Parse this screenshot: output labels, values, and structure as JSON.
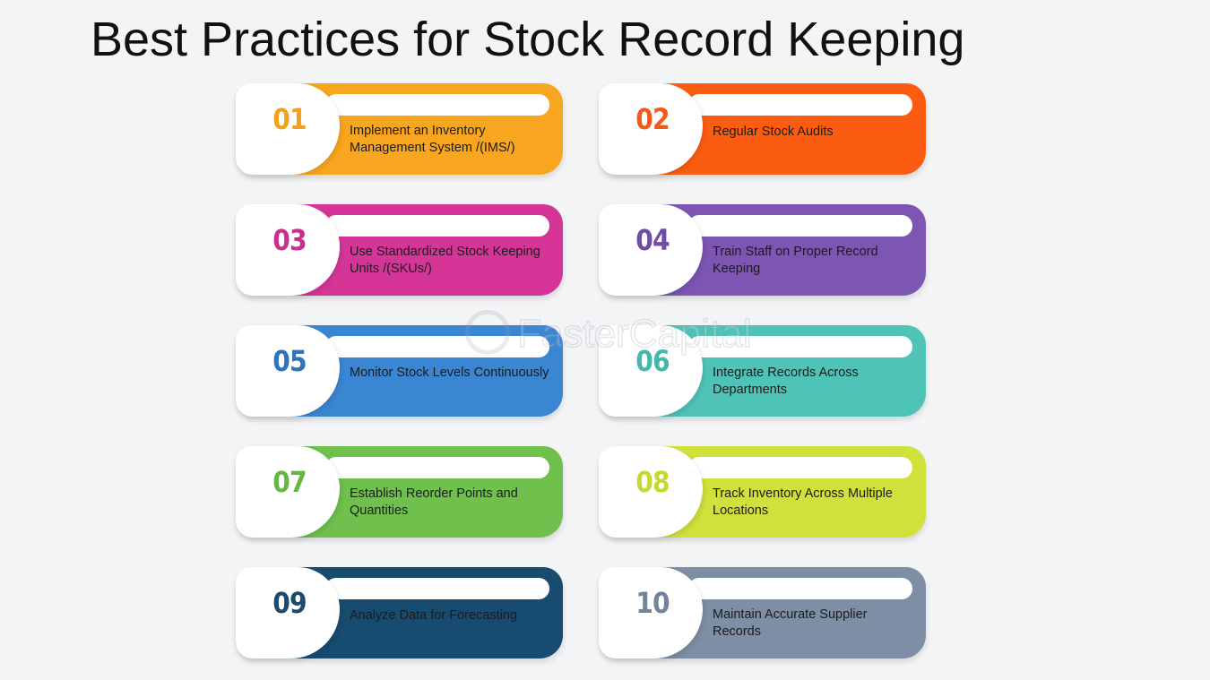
{
  "title": "Best Practices for Stock Record Keeping",
  "watermark": "FasterCapital",
  "cards": [
    {
      "number": "01",
      "label": "Implement an Inventory Management System /(IMS/)",
      "color": "#f8a51f",
      "number_color": "#f2a21a"
    },
    {
      "number": "02",
      "label": "Regular Stock Audits",
      "color": "#fa5d12",
      "number_color": "#f05a1a"
    },
    {
      "number": "03",
      "label": "Use Standardized Stock Keeping Units /(SKUs/)",
      "color": "#d63598",
      "number_color": "#c8308e"
    },
    {
      "number": "04",
      "label": "Train Staff on Proper Record Keeping",
      "color": "#7d55b3",
      "number_color": "#6f4ca6"
    },
    {
      "number": "05",
      "label": "Monitor Stock Levels Continuously",
      "color": "#3a86d3",
      "number_color": "#2f73bd"
    },
    {
      "number": "06",
      "label": "Integrate Records Across Departments",
      "color": "#50c3b7",
      "number_color": "#44b8ac"
    },
    {
      "number": "07",
      "label": "Establish Reorder Points and Quantities",
      "color": "#6fc04c",
      "number_color": "#62b842"
    },
    {
      "number": "08",
      "label": "Track Inventory Across Multiple Locations",
      "color": "#cfe13a",
      "number_color": "#c6d834"
    },
    {
      "number": "09",
      "label": "Analyze Data for Forecasting",
      "color": "#184b70",
      "number_color": "#1b4a6c"
    },
    {
      "number": "10",
      "label": "Maintain Accurate Supplier Records",
      "color": "#7d8ea5",
      "number_color": "#738499"
    }
  ]
}
